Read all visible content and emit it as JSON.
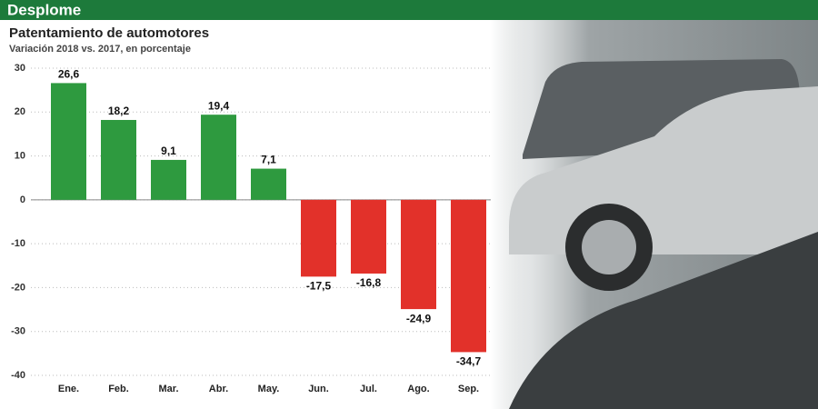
{
  "chart_data": {
    "type": "bar",
    "header": "Desplome",
    "title": "Patentamiento de automotores",
    "subtitle": "Variación 2018 vs. 2017, en porcentaje",
    "categories": [
      "Ene.",
      "Feb.",
      "Mar.",
      "Abr.",
      "May.",
      "Jun.",
      "Jul.",
      "Ago.",
      "Sep."
    ],
    "values": [
      26.6,
      18.2,
      9.1,
      19.4,
      7.1,
      -17.5,
      -16.8,
      -24.9,
      -34.7
    ],
    "value_labels": [
      "26,6",
      "18,2",
      "9,1",
      "19,4",
      "7,1",
      "-17,5",
      "-16,8",
      "-24,9",
      "-34,7"
    ],
    "colors": [
      "#2e9a3f",
      "#2e9a3f",
      "#2e9a3f",
      "#2e9a3f",
      "#2e9a3f",
      "#e2312a",
      "#e2312a",
      "#e2312a",
      "#e2312a"
    ],
    "ylim": [
      -40,
      30
    ],
    "yticks": [
      30,
      20,
      10,
      0,
      -10,
      -20,
      -30,
      -40
    ],
    "grid": true
  }
}
